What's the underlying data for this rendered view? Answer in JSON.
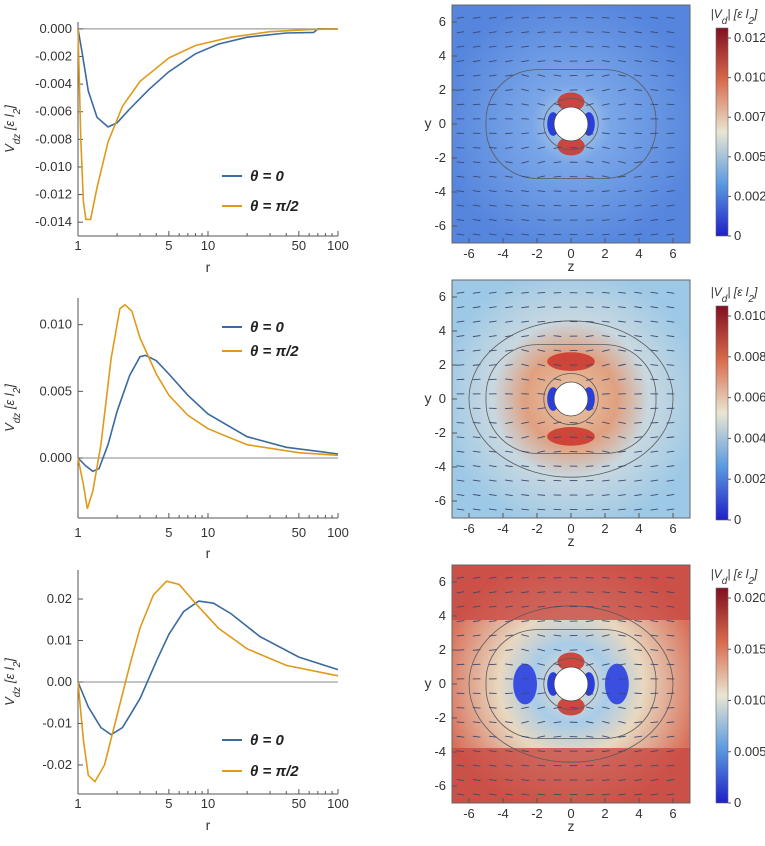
{
  "chart_data": [
    {
      "type": "line",
      "row": 0,
      "xscale": "log",
      "xlim": [
        1,
        100
      ],
      "ylim": [
        -0.015,
        0.0005
      ],
      "xlabel": "r",
      "ylabel": "V_dz [ε l_2]",
      "xticks": [
        "1",
        "5",
        "10",
        "50",
        "100"
      ],
      "yticks": [
        "0.000",
        "-0.002",
        "-0.004",
        "-0.006",
        "-0.008",
        "-0.010",
        "-0.012",
        "-0.014"
      ],
      "legend": "center-right",
      "series": [
        {
          "name": "θ = 0",
          "color": "#3b6aa0",
          "points": [
            [
              1,
              0
            ],
            [
              1.08,
              -0.0018
            ],
            [
              1.2,
              -0.0045
            ],
            [
              1.4,
              -0.0064
            ],
            [
              1.7,
              -0.0071
            ],
            [
              2,
              -0.0068
            ],
            [
              2.5,
              -0.0058
            ],
            [
              3.5,
              -0.0044
            ],
            [
              5,
              -0.0031
            ],
            [
              8,
              -0.0018
            ],
            [
              12,
              -0.0011
            ],
            [
              20,
              -0.0006
            ],
            [
              40,
              -0.0003
            ],
            [
              65,
              -0.00025
            ],
            [
              70,
              0
            ],
            [
              100,
              0
            ]
          ]
        },
        {
          "name": "θ = π/2",
          "color": "#e09a1a",
          "points": [
            [
              1,
              0
            ],
            [
              1.05,
              -0.008
            ],
            [
              1.1,
              -0.0125
            ],
            [
              1.15,
              -0.0138
            ],
            [
              1.25,
              -0.0138
            ],
            [
              1.4,
              -0.0115
            ],
            [
              1.7,
              -0.0082
            ],
            [
              2.2,
              -0.0056
            ],
            [
              3,
              -0.0038
            ],
            [
              5,
              -0.0021
            ],
            [
              8,
              -0.0012
            ],
            [
              15,
              -0.0006
            ],
            [
              30,
              -0.0002
            ],
            [
              60,
              -5e-05
            ],
            [
              100,
              0
            ]
          ]
        }
      ]
    },
    {
      "type": "line",
      "row": 1,
      "xscale": "log",
      "xlim": [
        1,
        100
      ],
      "ylim": [
        -0.0045,
        0.012
      ],
      "xlabel": "r",
      "ylabel": "V_dz [ε l_2]",
      "xticks": [
        "1",
        "5",
        "10",
        "50",
        "100"
      ],
      "yticks": [
        "0.010",
        "0.005",
        "0.000"
      ],
      "legend": "top-right",
      "series": [
        {
          "name": "θ = 0",
          "color": "#3b6aa0",
          "points": [
            [
              1,
              0
            ],
            [
              1.15,
              -0.0006
            ],
            [
              1.3,
              -0.001
            ],
            [
              1.45,
              -0.0008
            ],
            [
              1.7,
              0.001
            ],
            [
              2,
              0.0035
            ],
            [
              2.5,
              0.0062
            ],
            [
              3,
              0.0076
            ],
            [
              3.3,
              0.0077
            ],
            [
              4,
              0.0073
            ],
            [
              5,
              0.0063
            ],
            [
              7,
              0.0047
            ],
            [
              10,
              0.0033
            ],
            [
              20,
              0.0016
            ],
            [
              40,
              0.0008
            ],
            [
              70,
              0.0005
            ],
            [
              100,
              0.0003
            ]
          ]
        },
        {
          "name": "θ = π/2",
          "color": "#e09a1a",
          "points": [
            [
              1,
              0
            ],
            [
              1.1,
              -0.002
            ],
            [
              1.18,
              -0.0038
            ],
            [
              1.3,
              -0.0025
            ],
            [
              1.5,
              0.001
            ],
            [
              1.8,
              0.0075
            ],
            [
              2.1,
              0.0112
            ],
            [
              2.3,
              0.0115
            ],
            [
              2.6,
              0.011
            ],
            [
              3,
              0.009
            ],
            [
              4,
              0.0063
            ],
            [
              5,
              0.0047
            ],
            [
              7,
              0.0032
            ],
            [
              10,
              0.0022
            ],
            [
              20,
              0.001
            ],
            [
              50,
              0.0004
            ],
            [
              100,
              0.0002
            ]
          ]
        }
      ]
    },
    {
      "type": "line",
      "row": 2,
      "xscale": "log",
      "xlim": [
        1,
        100
      ],
      "ylim": [
        -0.027,
        0.027
      ],
      "xlabel": "r",
      "ylabel": "V_dz [ε l_2]",
      "xticks": [
        "1",
        "5",
        "10",
        "50",
        "100"
      ],
      "yticks": [
        "0.02",
        "0.01",
        "0.00",
        "-0.01",
        "-0.02"
      ],
      "legend": "bottom-right",
      "series": [
        {
          "name": "θ = 0",
          "color": "#3b6aa0",
          "points": [
            [
              1,
              0
            ],
            [
              1.2,
              -0.006
            ],
            [
              1.5,
              -0.011
            ],
            [
              1.8,
              -0.0127
            ],
            [
              2.2,
              -0.011
            ],
            [
              3,
              -0.004
            ],
            [
              4,
              0.005
            ],
            [
              5,
              0.0115
            ],
            [
              6.5,
              0.017
            ],
            [
              8.5,
              0.0195
            ],
            [
              11,
              0.019
            ],
            [
              15,
              0.0165
            ],
            [
              25,
              0.011
            ],
            [
              50,
              0.006
            ],
            [
              100,
              0.003
            ]
          ]
        },
        {
          "name": "θ = π/2",
          "color": "#e09a1a",
          "points": [
            [
              1,
              0
            ],
            [
              1.1,
              -0.014
            ],
            [
              1.2,
              -0.0225
            ],
            [
              1.35,
              -0.024
            ],
            [
              1.6,
              -0.02
            ],
            [
              2,
              -0.008
            ],
            [
              2.5,
              0.004
            ],
            [
              3,
              0.013
            ],
            [
              3.8,
              0.021
            ],
            [
              4.8,
              0.0243
            ],
            [
              6,
              0.0235
            ],
            [
              8,
              0.019
            ],
            [
              12,
              0.013
            ],
            [
              20,
              0.008
            ],
            [
              40,
              0.004
            ],
            [
              100,
              0.0015
            ]
          ]
        }
      ]
    },
    {
      "type": "heatmap",
      "row": 0,
      "xlabel": "z",
      "ylabel": "y",
      "xticks": [
        "-6",
        "-4",
        "-2",
        "0",
        "2",
        "4",
        "6"
      ],
      "yticks": [
        "6",
        "4",
        "2",
        "0",
        "-2",
        "-4",
        "-6"
      ],
      "colorbar_title": "|V_d| [ε l_2]",
      "colorbar_ticks": [
        "0.0125",
        "0.0100",
        "0.0075",
        "0.0050",
        "0.0025",
        "0"
      ],
      "background_color": "#5585dd"
    },
    {
      "type": "heatmap",
      "row": 1,
      "xlabel": "z",
      "ylabel": "y",
      "xticks": [
        "-6",
        "-4",
        "-2",
        "0",
        "2",
        "4",
        "6"
      ],
      "yticks": [
        "6",
        "4",
        "2",
        "0",
        "-2",
        "-4",
        "-6"
      ],
      "colorbar_title": "|V_d| [ε l_2]",
      "colorbar_ticks": [
        "0.010",
        "0.008",
        "0.006",
        "0.004",
        "0.002",
        "0"
      ],
      "background_color": "#9ec9e6"
    },
    {
      "type": "heatmap",
      "row": 2,
      "xlabel": "z",
      "ylabel": "y",
      "xticks": [
        "-6",
        "-4",
        "-2",
        "0",
        "2",
        "4",
        "6"
      ],
      "yticks": [
        "6",
        "4",
        "2",
        "0",
        "-2",
        "-4",
        "-6"
      ],
      "colorbar_title": "|V_d| [ε l_2]",
      "colorbar_ticks": [
        "0.020",
        "0.015",
        "0.010",
        "0.005",
        "0"
      ],
      "background_color": "#e0866a"
    }
  ],
  "colors": {
    "axis": "#555555",
    "zero_line": "#888888",
    "contour": "#5a5a5a",
    "arrow": "#3b4a70"
  }
}
